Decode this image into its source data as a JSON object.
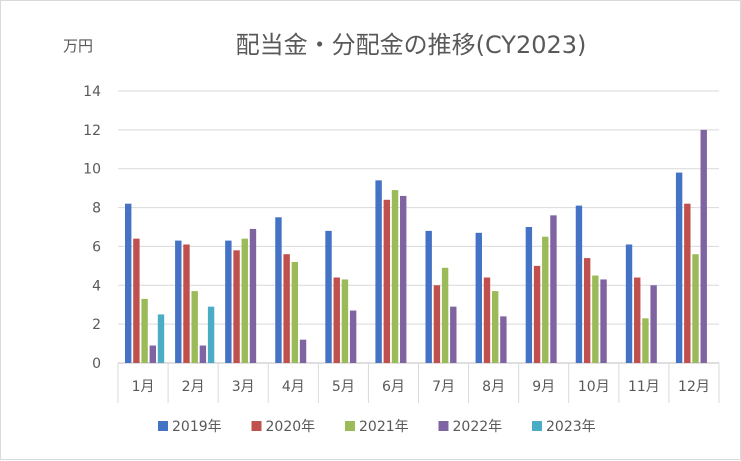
{
  "chart_data": {
    "type": "bar",
    "title": "配当金・分配金の推移(CY2023)",
    "unit_label": "万円",
    "categories": [
      "1月",
      "2月",
      "3月",
      "4月",
      "5月",
      "6月",
      "7月",
      "8月",
      "9月",
      "10月",
      "11月",
      "12月"
    ],
    "ylim": [
      0,
      14
    ],
    "yticks": [
      0,
      2,
      4,
      6,
      8,
      10,
      12,
      14
    ],
    "grid": true,
    "legend_position": "bottom",
    "series": [
      {
        "name": "2019年",
        "color": "#4472c4",
        "values": [
          8.2,
          6.3,
          6.3,
          7.5,
          6.8,
          9.4,
          6.8,
          6.7,
          7.0,
          8.1,
          6.1,
          9.8
        ]
      },
      {
        "name": "2020年",
        "color": "#c0504d",
        "values": [
          6.4,
          6.1,
          5.8,
          5.6,
          4.4,
          8.4,
          4.0,
          4.4,
          5.0,
          5.4,
          4.4,
          8.2
        ]
      },
      {
        "name": "2021年",
        "color": "#9bbb59",
        "values": [
          3.3,
          3.7,
          6.4,
          5.2,
          4.3,
          8.9,
          4.9,
          3.7,
          6.5,
          4.5,
          2.3,
          5.6
        ]
      },
      {
        "name": "2022年",
        "color": "#8064a2",
        "values": [
          0.9,
          0.9,
          6.9,
          1.2,
          2.7,
          8.6,
          2.9,
          2.4,
          7.6,
          4.3,
          4.0,
          12.0
        ]
      },
      {
        "name": "2023年",
        "color": "#4bacc6",
        "values": [
          2.5,
          2.9,
          null,
          null,
          null,
          null,
          null,
          null,
          null,
          null,
          null,
          null
        ]
      }
    ]
  }
}
